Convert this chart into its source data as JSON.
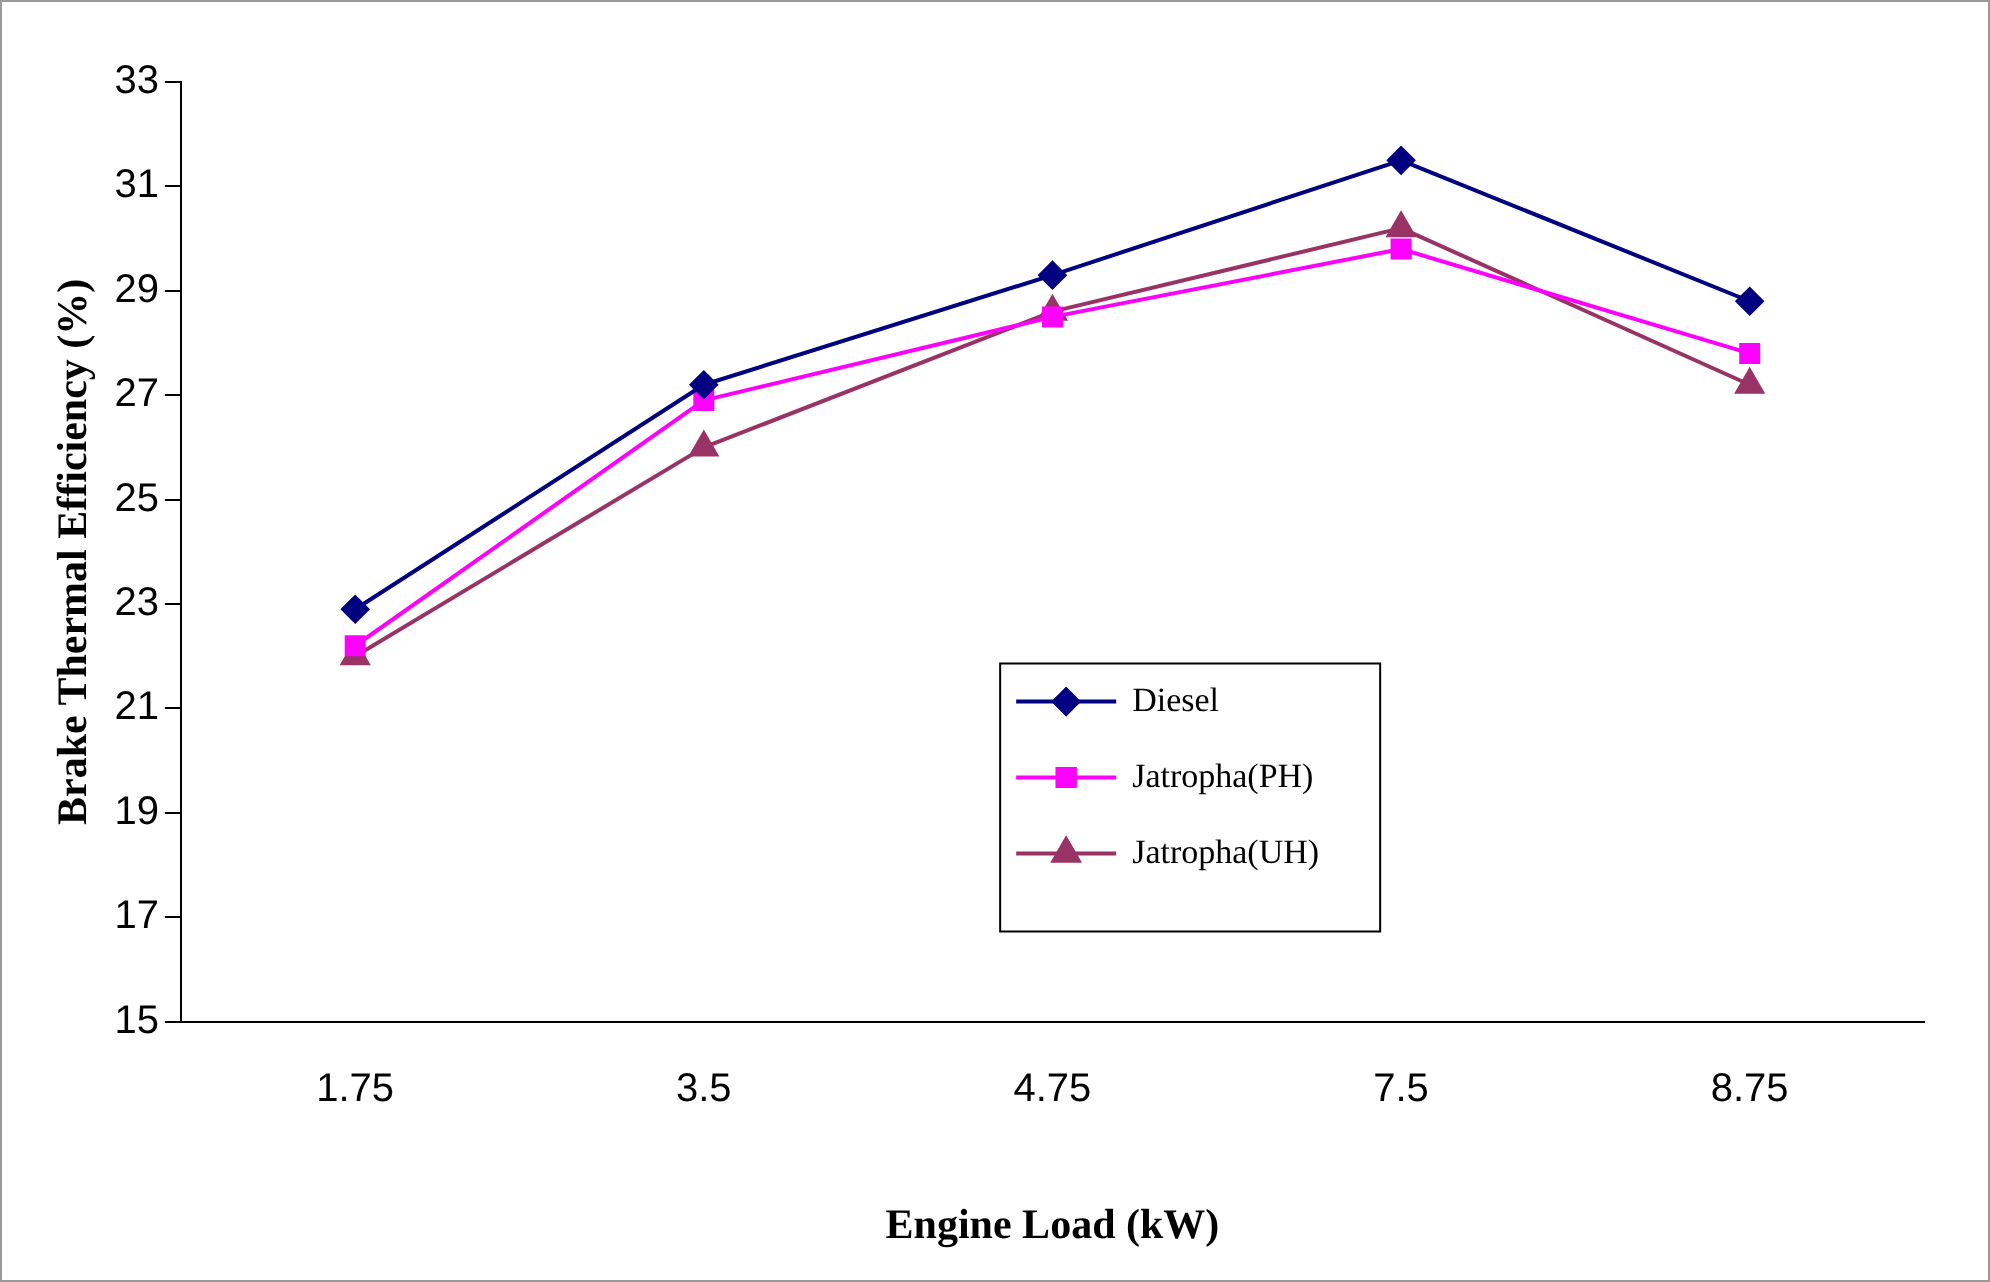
{
  "chart_data": {
    "type": "line",
    "xlabel": "Engine Load (kW)",
    "ylabel": "Brake Thermal Efficiency (%)",
    "categories": [
      "1.75",
      "3.5",
      "4.75",
      "7.5",
      "8.75"
    ],
    "series": [
      {
        "name": "Diesel",
        "color": "#000080",
        "marker": "diamond",
        "values": [
          22.9,
          27.2,
          29.3,
          31.5,
          28.8
        ]
      },
      {
        "name": "Jatropha(PH)",
        "color": "#ff00ff",
        "marker": "square",
        "values": [
          22.2,
          26.9,
          28.5,
          29.8,
          27.8
        ]
      },
      {
        "name": "Jatropha(UH)",
        "color": "#993366",
        "marker": "triangle",
        "values": [
          22.0,
          26.0,
          28.6,
          30.2,
          27.2
        ]
      }
    ],
    "ylim": [
      15,
      33
    ],
    "yticks": [
      15,
      17,
      19,
      21,
      23,
      25,
      27,
      29,
      31,
      33
    ],
    "grid": false,
    "legend": "bottom right",
    "line_style": "solid"
  }
}
